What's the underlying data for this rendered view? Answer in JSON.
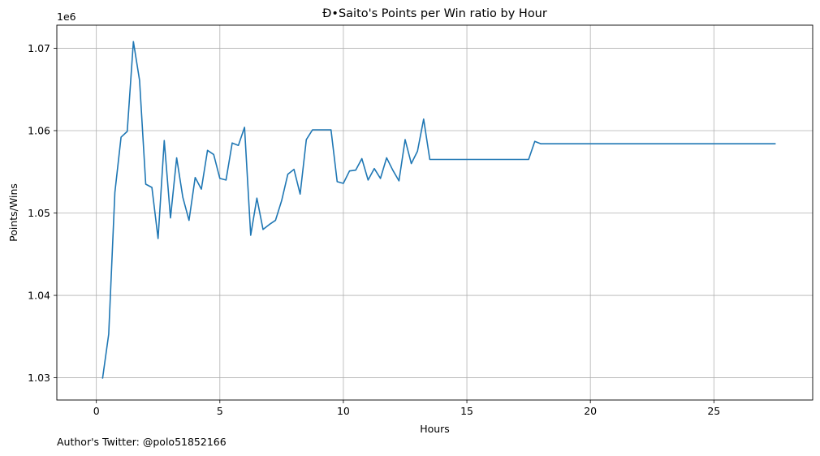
{
  "chart_data": {
    "type": "line",
    "title": "Đ•Saito's Points per Win ratio by Hour",
    "xlabel": "Hours",
    "ylabel": "Points/Wins",
    "y_offset_label": "1e6",
    "xlim": [
      -1.6,
      29.0
    ],
    "ylim": [
      1.0273,
      1.0728
    ],
    "xticks": [
      0,
      5,
      10,
      15,
      20,
      25
    ],
    "xtick_labels": [
      "0",
      "5",
      "10",
      "15",
      "20",
      "25"
    ],
    "yticks": [
      1.03,
      1.04,
      1.05,
      1.06,
      1.07
    ],
    "ytick_labels": [
      "1.03",
      "1.04",
      "1.05",
      "1.06",
      "1.07"
    ],
    "grid": true,
    "series": [
      {
        "color": "#1f77b4",
        "x": [
          0.25,
          0.5,
          0.75,
          1.0,
          1.25,
          1.5,
          1.75,
          2.0,
          2.25,
          2.5,
          2.75,
          3.0,
          3.25,
          3.5,
          3.75,
          4.0,
          4.25,
          4.5,
          4.75,
          5.0,
          5.25,
          5.5,
          5.75,
          6.0,
          6.25,
          6.5,
          6.75,
          7.0,
          7.25,
          7.5,
          7.75,
          8.0,
          8.25,
          8.5,
          8.75,
          9.0,
          9.25,
          9.5,
          9.75,
          10.0,
          10.25,
          10.5,
          10.75,
          11.0,
          11.25,
          11.5,
          11.75,
          12.0,
          12.25,
          12.5,
          12.75,
          13.0,
          13.25,
          13.5,
          17.5,
          17.75,
          18.0,
          27.5
        ],
        "y": [
          1.0299,
          1.0353,
          1.0525,
          1.0592,
          1.0599,
          1.0708,
          1.0661,
          1.0535,
          1.0531,
          1.0469,
          1.0588,
          1.0494,
          1.0567,
          1.0519,
          1.0491,
          1.0543,
          1.0529,
          1.0576,
          1.0571,
          1.0542,
          1.054,
          1.0585,
          1.0582,
          1.0604,
          1.0473,
          1.0518,
          1.048,
          1.0486,
          1.0491,
          1.0515,
          1.0547,
          1.0553,
          1.0523,
          1.0589,
          1.0601,
          1.0601,
          1.0601,
          1.0601,
          1.0538,
          1.0536,
          1.0551,
          1.0552,
          1.0566,
          1.054,
          1.0554,
          1.0542,
          1.0567,
          1.0552,
          1.0539,
          1.0589,
          1.056,
          1.0575,
          1.0614,
          1.0565,
          1.0565,
          1.0587,
          1.0584,
          1.0584
        ]
      }
    ]
  },
  "footer": {
    "text": "Author's Twitter: @polo51852166"
  }
}
